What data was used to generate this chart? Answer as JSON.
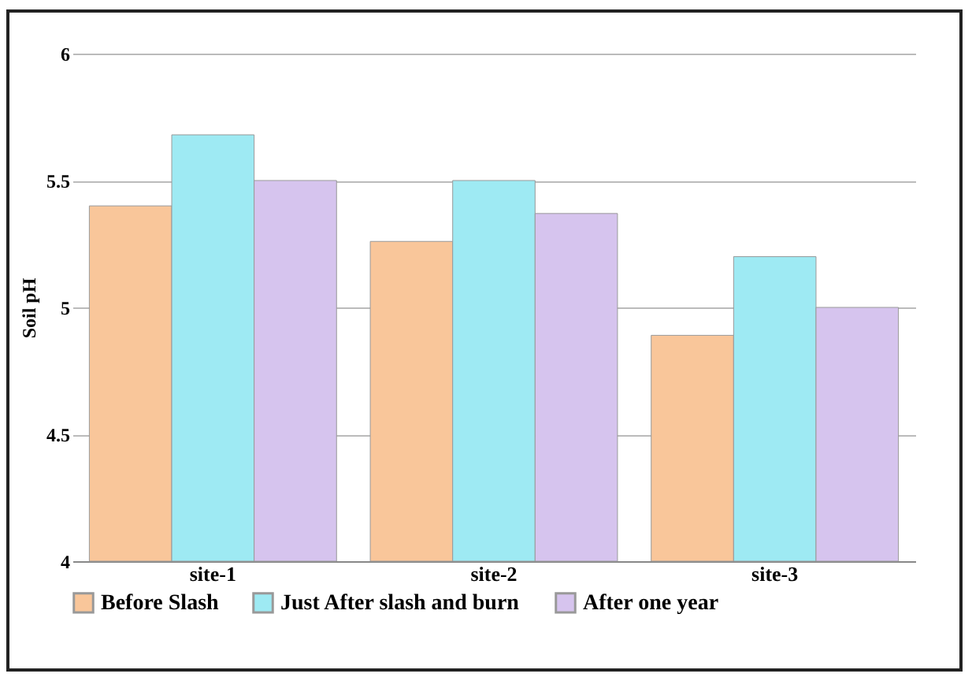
{
  "chart_data": {
    "type": "bar",
    "ylabel": "Soil pH",
    "categories": [
      "site-1",
      "site-2",
      "site-3"
    ],
    "series": [
      {
        "name": "Before Slash",
        "color": "#f9c69a",
        "values": [
          5.4,
          5.26,
          4.89
        ]
      },
      {
        "name": "Just After slash and burn",
        "color": "#9eeaf3",
        "values": [
          5.68,
          5.5,
          5.2
        ]
      },
      {
        "name": "After one year",
        "color": "#d6c4ee",
        "values": [
          5.5,
          5.37,
          5.0
        ]
      }
    ],
    "ylim": [
      4,
      6
    ],
    "yticks": [
      4,
      4.5,
      5,
      5.5,
      6
    ],
    "grid": "y",
    "legend": "bottom"
  }
}
